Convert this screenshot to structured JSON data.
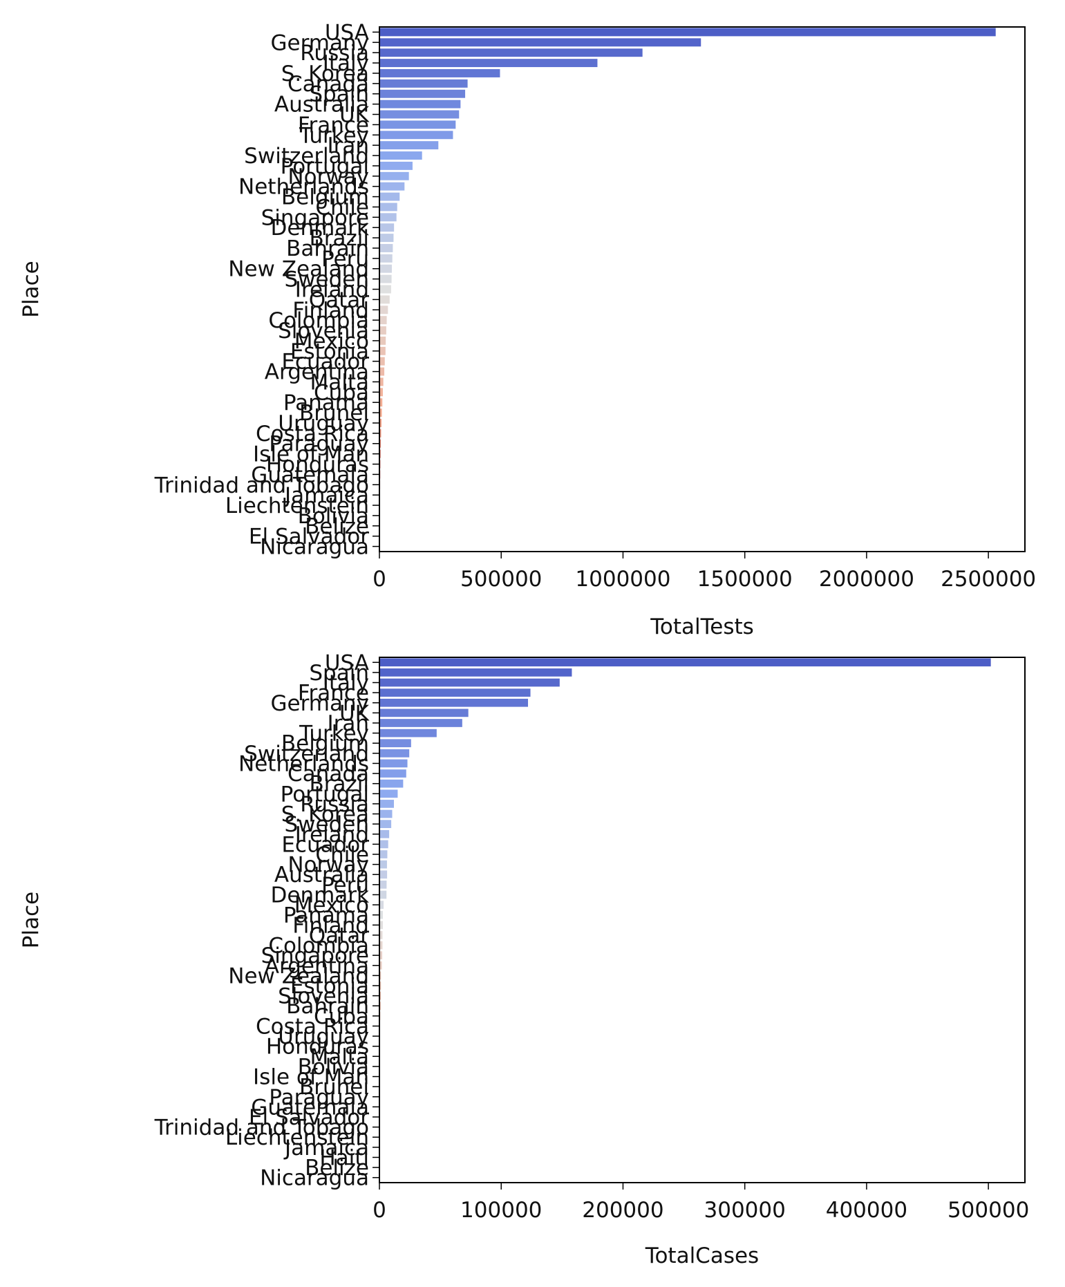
{
  "chart_data": [
    {
      "type": "bar",
      "orientation": "horizontal",
      "xlabel": "TotalTests",
      "ylabel": "Place",
      "xlim": [
        0,
        2650000
      ],
      "xticks": [
        "0",
        "500000",
        "1000000",
        "1500000",
        "2000000",
        "2500000"
      ],
      "xtick_values": [
        0,
        500000,
        1000000,
        1500000,
        2000000,
        2500000
      ],
      "palette": "coolwarm",
      "categories": [
        "USA",
        "Germany",
        "Russia",
        "Italy",
        "S. Korea",
        "Canada",
        "Spain",
        "Australia",
        "UK",
        "France",
        "Turkey",
        "Iran",
        "Switzerland",
        "Portugal",
        "Norway",
        "Netherlands",
        "Belgium",
        "Chile",
        "Singapore",
        "Denmark",
        "Brazil",
        "Bahrain",
        "Peru",
        "New Zealand",
        "Sweden",
        "Ireland",
        "Qatar",
        "Finland",
        "Colombia",
        "Slovenia",
        "Mexico",
        "Estonia",
        "Ecuador",
        "Argentina",
        "Malta",
        "Cuba",
        "Panama",
        "Brunei",
        "Uruguay",
        "Costa Rica",
        "Paraguay",
        "Isle of Man",
        "Honduras",
        "Guatemala",
        "Trinidad and Tobago",
        "Jamaica",
        "Liechtenstein",
        "Bolivia",
        "Belize",
        "El Salvador",
        "Nicaragua"
      ],
      "values": [
        2530000,
        1320000,
        1080000,
        895000,
        495000,
        362000,
        352000,
        333000,
        327000,
        313000,
        302000,
        242000,
        175000,
        136000,
        121000,
        103000,
        83000,
        73000,
        70000,
        60000,
        58000,
        55000,
        53000,
        51000,
        50000,
        48000,
        42000,
        35000,
        30000,
        28000,
        26000,
        25000,
        22000,
        20000,
        16000,
        14000,
        12000,
        10000,
        8500,
        7000,
        6000,
        5000,
        4000,
        3500,
        3000,
        2500,
        2000,
        1700,
        1400,
        1000,
        500
      ]
    },
    {
      "type": "bar",
      "orientation": "horizontal",
      "xlabel": "TotalCases",
      "ylabel": "Place",
      "xlim": [
        0,
        530000
      ],
      "xticks": [
        "0",
        "100000",
        "200000",
        "300000",
        "400000",
        "500000"
      ],
      "xtick_values": [
        0,
        100000,
        200000,
        300000,
        400000,
        500000
      ],
      "palette": "coolwarm",
      "categories": [
        "USA",
        "Spain",
        "Italy",
        "France",
        "Germany",
        "UK",
        "Iran",
        "Turkey",
        "Belgium",
        "Switzerland",
        "Netherlands",
        "Canada",
        "Brazil",
        "Portugal",
        "Russia",
        "S. Korea",
        "Sweden",
        "Ireland",
        "Ecuador",
        "Chile",
        "Norway",
        "Australia",
        "Peru",
        "Denmark",
        "Mexico",
        "Panama",
        "Finland",
        "Qatar",
        "Colombia",
        "Singapore",
        "Argentina",
        "New Zealand",
        "Estonia",
        "Slovenia",
        "Bahrain",
        "Cuba",
        "Costa Rica",
        "Uruguay",
        "Honduras",
        "Malta",
        "Bolivia",
        "Isle of Man",
        "Brunei",
        "Paraguay",
        "Guatemala",
        "El Salvador",
        "Trinidad and Tobago",
        "Liechtenstein",
        "Jamaica",
        "Haiti",
        "Belize",
        "Nicaragua"
      ],
      "values": [
        502000,
        158000,
        148000,
        124000,
        122000,
        73000,
        68000,
        47000,
        26000,
        24500,
        23000,
        22000,
        19500,
        15000,
        11900,
        10500,
        9700,
        8000,
        7200,
        6500,
        6200,
        6300,
        5900,
        5800,
        3400,
        2800,
        2800,
        2500,
        2500,
        2300,
        2000,
        1300,
        1300,
        1200,
        1000,
        700,
        560,
        500,
        400,
        350,
        300,
        200,
        140,
        120,
        110,
        100,
        100,
        80,
        70,
        60,
        30,
        10
      ]
    }
  ]
}
